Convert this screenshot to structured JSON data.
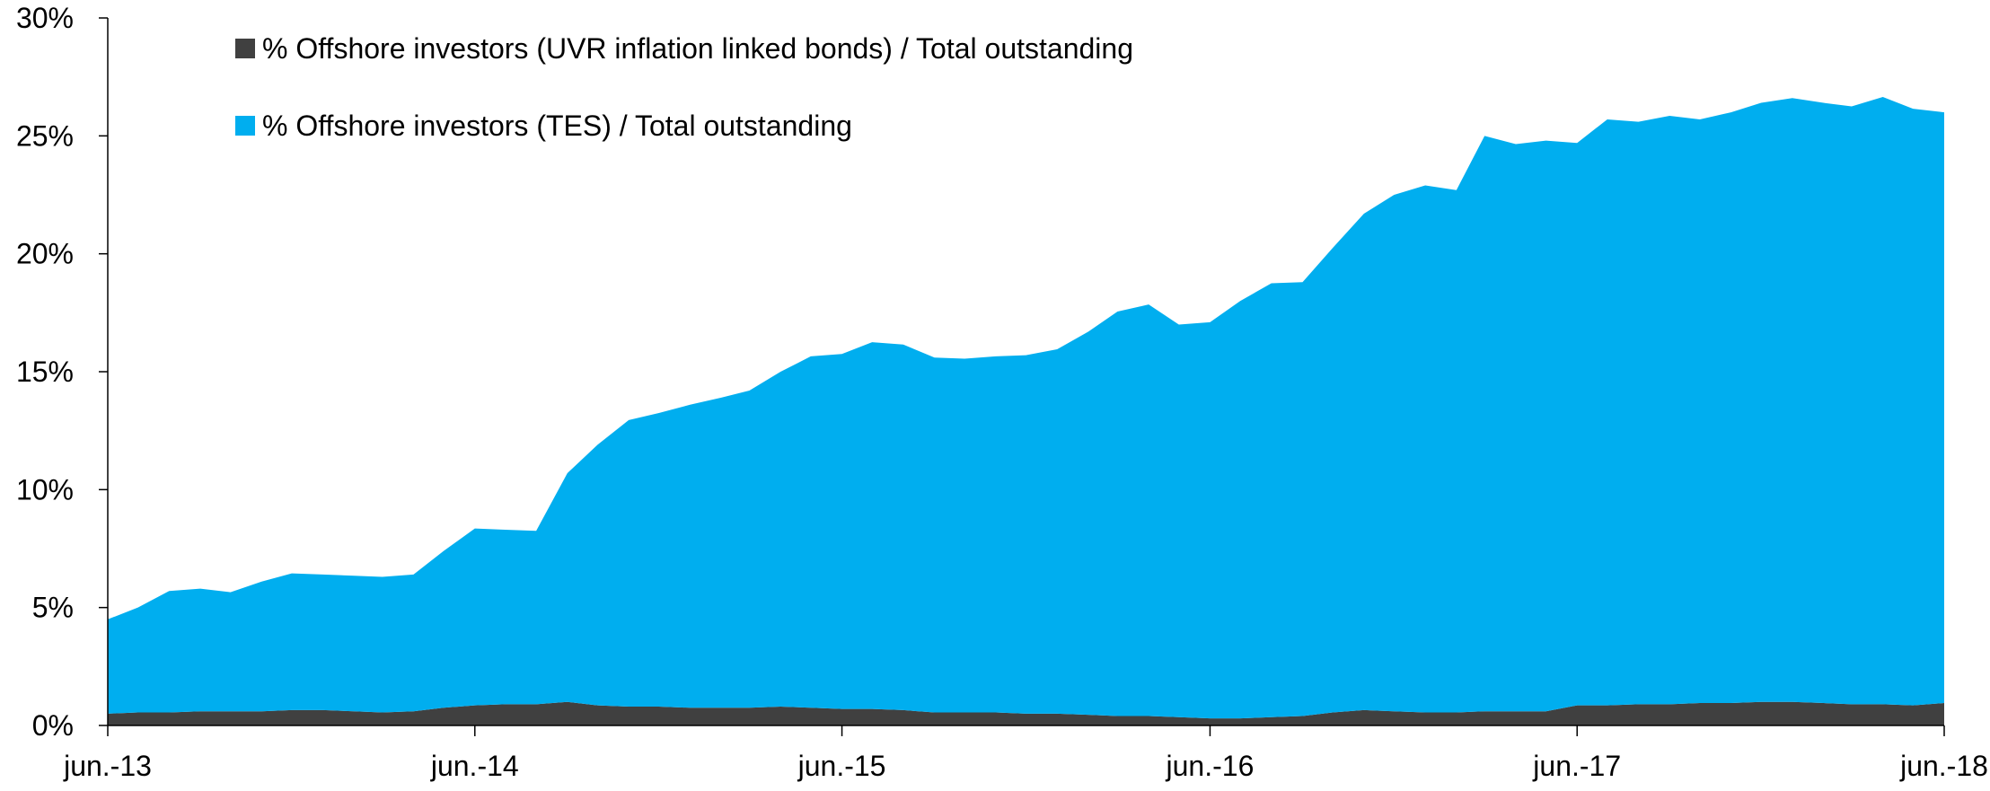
{
  "chart_data": {
    "type": "area",
    "stacked": true,
    "title": "",
    "xlabel": "",
    "ylabel": "",
    "ylim": [
      0,
      30
    ],
    "y_ticks": [
      {
        "value": 0,
        "label": "0%"
      },
      {
        "value": 5,
        "label": "5%"
      },
      {
        "value": 10,
        "label": "10%"
      },
      {
        "value": 15,
        "label": "15%"
      },
      {
        "value": 20,
        "label": "20%"
      },
      {
        "value": 25,
        "label": "25%"
      },
      {
        "value": 30,
        "label": "30%"
      }
    ],
    "x_ticks": [
      {
        "value": "2013-06-01",
        "label": "jun.-13"
      },
      {
        "value": "2014-06-01",
        "label": "jun.-14"
      },
      {
        "value": "2015-06-01",
        "label": "jun.-15"
      },
      {
        "value": "2016-06-01",
        "label": "jun.-16"
      },
      {
        "value": "2017-06-01",
        "label": "jun.-17"
      },
      {
        "value": "2018-06-01",
        "label": "jun.-18"
      }
    ],
    "grid": false,
    "legend_position": "top-left",
    "x": [
      "2013-06-01",
      "2013-07-01",
      "2013-08-01",
      "2013-09-01",
      "2013-10-01",
      "2013-11-01",
      "2013-12-01",
      "2014-01-01",
      "2014-02-01",
      "2014-03-01",
      "2014-04-01",
      "2014-05-01",
      "2014-06-01",
      "2014-07-01",
      "2014-08-01",
      "2014-09-01",
      "2014-10-01",
      "2014-11-01",
      "2014-12-01",
      "2015-01-01",
      "2015-02-01",
      "2015-03-01",
      "2015-04-01",
      "2015-05-01",
      "2015-06-01",
      "2015-07-01",
      "2015-08-01",
      "2015-09-01",
      "2015-10-01",
      "2015-11-01",
      "2015-12-01",
      "2016-01-01",
      "2016-02-01",
      "2016-03-01",
      "2016-04-01",
      "2016-05-01",
      "2016-06-01",
      "2016-07-01",
      "2016-08-01",
      "2016-09-01",
      "2016-10-01",
      "2016-11-01",
      "2016-12-01",
      "2017-01-01",
      "2017-02-01",
      "2017-03-01",
      "2017-04-01",
      "2017-05-01",
      "2017-06-01",
      "2017-07-01",
      "2017-08-01",
      "2017-09-01",
      "2017-10-01",
      "2017-11-01",
      "2017-12-01",
      "2018-01-01",
      "2018-02-01",
      "2018-03-01",
      "2018-04-01",
      "2018-05-01",
      "2018-06-01"
    ],
    "series": [
      {
        "name": "% Offshore investors (UVR inflation linked bonds) / Total outstanding",
        "color": "#404040",
        "values": [
          0.5,
          0.55,
          0.55,
          0.6,
          0.6,
          0.6,
          0.65,
          0.65,
          0.6,
          0.55,
          0.6,
          0.75,
          0.85,
          0.9,
          0.9,
          1.0,
          0.85,
          0.8,
          0.8,
          0.75,
          0.75,
          0.75,
          0.8,
          0.75,
          0.7,
          0.7,
          0.65,
          0.55,
          0.55,
          0.55,
          0.5,
          0.5,
          0.45,
          0.4,
          0.4,
          0.35,
          0.3,
          0.3,
          0.35,
          0.4,
          0.55,
          0.65,
          0.6,
          0.55,
          0.55,
          0.6,
          0.6,
          0.6,
          0.85,
          0.85,
          0.9,
          0.9,
          0.95,
          0.95,
          1.0,
          1.0,
          0.95,
          0.9,
          0.9,
          0.85,
          0.95
        ]
      },
      {
        "name": "% Offshore investors (TES) / Total outstanding",
        "color": "#00AEEF",
        "values": [
          4.0,
          4.45,
          5.15,
          5.2,
          5.05,
          5.5,
          5.8,
          5.75,
          5.75,
          5.75,
          5.8,
          6.65,
          7.5,
          7.4,
          7.35,
          9.7,
          11.05,
          12.15,
          12.45,
          12.85,
          13.15,
          13.45,
          14.2,
          14.9,
          15.05,
          15.55,
          15.5,
          15.05,
          15.0,
          15.1,
          15.2,
          15.45,
          16.25,
          17.15,
          17.45,
          16.65,
          16.8,
          17.7,
          18.4,
          18.4,
          19.7,
          21.05,
          21.9,
          22.35,
          22.15,
          24.4,
          24.05,
          24.2,
          23.85,
          24.85,
          24.7,
          24.95,
          24.75,
          25.05,
          25.4,
          25.6,
          25.45,
          25.35,
          25.75,
          25.3,
          25.05
        ]
      }
    ],
    "legend": [
      {
        "label": "% Offshore investors (UVR inflation linked bonds) / Total outstanding",
        "color": "#404040"
      },
      {
        "label": "% Offshore investors (TES) / Total outstanding",
        "color": "#00AEEF"
      }
    ]
  }
}
